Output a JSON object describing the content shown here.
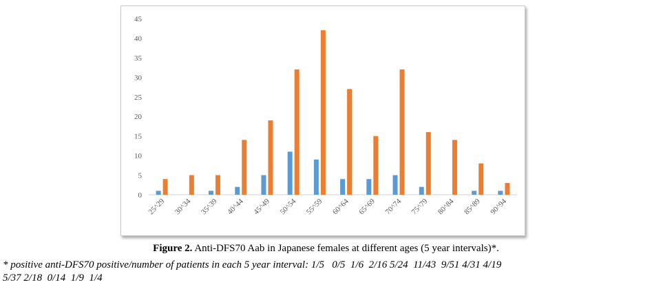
{
  "chart_data": {
    "type": "bar",
    "categories": [
      "25^29",
      "30^34",
      "35^39",
      "40^44",
      "45^49",
      "50^54",
      "55^59",
      "60^64",
      "65^69",
      "70^74",
      "75^79",
      "80^84",
      "85^89",
      "90^94"
    ],
    "series": [
      {
        "values": [
          1,
          0,
          1,
          2,
          5,
          11,
          9,
          4,
          4,
          5,
          2,
          0,
          1,
          1
        ],
        "color": "#5b9bd5"
      },
      {
        "values": [
          4,
          5,
          5,
          14,
          19,
          32,
          42,
          27,
          15,
          32,
          16,
          14,
          8,
          3
        ],
        "color": "#ed7d31"
      }
    ],
    "y_ticks": [
      "0",
      "5",
      "10",
      "15",
      "20",
      "25",
      "30",
      "35",
      "40",
      "45"
    ],
    "ylim": [
      0,
      45
    ],
    "grid": false,
    "legend": "none"
  },
  "caption": {
    "label": "Figure 2.",
    "text": " Anti-DFS70 Aab in Japanese females at different ages (5 year intervals)*."
  },
  "footnote": "* positive anti-DFS70 positive/number of patients in each 5 year interval: 1/5   0/5  1/6  2/16 5/24  11/43  9/51 4/31 4/19\n5/37 2/18  0/14  1/9  1/4"
}
